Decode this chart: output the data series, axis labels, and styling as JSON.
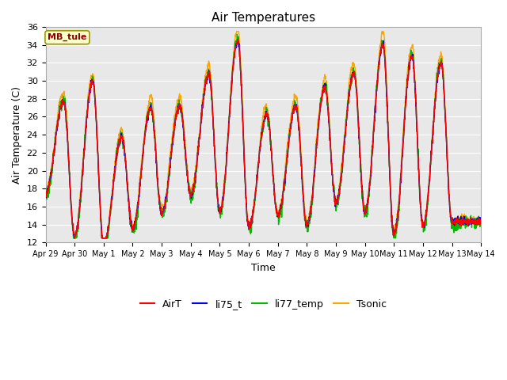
{
  "title": "Air Temperatures",
  "xlabel": "Time",
  "ylabel": "Air Temperature (C)",
  "ylim": [
    12,
    36
  ],
  "yticks": [
    12,
    14,
    16,
    18,
    20,
    22,
    24,
    26,
    28,
    30,
    32,
    34,
    36
  ],
  "annotation_text": "MB_tule",
  "annotation_color": "#8B0000",
  "annotation_bg": "#FFFFCC",
  "plot_bg": "#E8E8E8",
  "fig_bg": "#FFFFFF",
  "date_labels": [
    "Apr 29",
    "Apr 30",
    "May 1",
    "May 2",
    "May 3",
    "May 4",
    "May 5",
    "May 6",
    "May 7",
    "May 8",
    "May 9",
    "May 10",
    "May 11",
    "May 12",
    "May 13",
    "May 14"
  ],
  "num_days": 15,
  "figsize": [
    6.4,
    4.8
  ],
  "dpi": 100,
  "colors": {
    "AirT": "#FF0000",
    "li75_t": "#0000FF",
    "li77_temp": "#00BB00",
    "Tsonic": "#FFA500"
  }
}
